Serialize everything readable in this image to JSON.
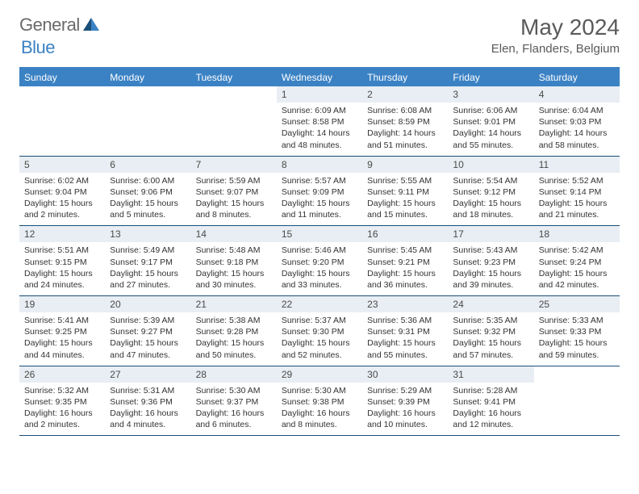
{
  "logo": {
    "general": "General",
    "blue": "Blue"
  },
  "title": "May 2024",
  "location": "Elen, Flanders, Belgium",
  "colors": {
    "header_bg": "#3b82c4",
    "header_text": "#ffffff",
    "daynum_bg": "#e8eef3",
    "border": "#1a4f7a",
    "logo_gray": "#6a6a6a",
    "logo_blue": "#3b82c4"
  },
  "weekdays": [
    "Sunday",
    "Monday",
    "Tuesday",
    "Wednesday",
    "Thursday",
    "Friday",
    "Saturday"
  ],
  "weeks": [
    [
      {
        "num": "",
        "lines": []
      },
      {
        "num": "",
        "lines": []
      },
      {
        "num": "",
        "lines": []
      },
      {
        "num": "1",
        "lines": [
          "Sunrise: 6:09 AM",
          "Sunset: 8:58 PM",
          "Daylight: 14 hours and 48 minutes."
        ]
      },
      {
        "num": "2",
        "lines": [
          "Sunrise: 6:08 AM",
          "Sunset: 8:59 PM",
          "Daylight: 14 hours and 51 minutes."
        ]
      },
      {
        "num": "3",
        "lines": [
          "Sunrise: 6:06 AM",
          "Sunset: 9:01 PM",
          "Daylight: 14 hours and 55 minutes."
        ]
      },
      {
        "num": "4",
        "lines": [
          "Sunrise: 6:04 AM",
          "Sunset: 9:03 PM",
          "Daylight: 14 hours and 58 minutes."
        ]
      }
    ],
    [
      {
        "num": "5",
        "lines": [
          "Sunrise: 6:02 AM",
          "Sunset: 9:04 PM",
          "Daylight: 15 hours and 2 minutes."
        ]
      },
      {
        "num": "6",
        "lines": [
          "Sunrise: 6:00 AM",
          "Sunset: 9:06 PM",
          "Daylight: 15 hours and 5 minutes."
        ]
      },
      {
        "num": "7",
        "lines": [
          "Sunrise: 5:59 AM",
          "Sunset: 9:07 PM",
          "Daylight: 15 hours and 8 minutes."
        ]
      },
      {
        "num": "8",
        "lines": [
          "Sunrise: 5:57 AM",
          "Sunset: 9:09 PM",
          "Daylight: 15 hours and 11 minutes."
        ]
      },
      {
        "num": "9",
        "lines": [
          "Sunrise: 5:55 AM",
          "Sunset: 9:11 PM",
          "Daylight: 15 hours and 15 minutes."
        ]
      },
      {
        "num": "10",
        "lines": [
          "Sunrise: 5:54 AM",
          "Sunset: 9:12 PM",
          "Daylight: 15 hours and 18 minutes."
        ]
      },
      {
        "num": "11",
        "lines": [
          "Sunrise: 5:52 AM",
          "Sunset: 9:14 PM",
          "Daylight: 15 hours and 21 minutes."
        ]
      }
    ],
    [
      {
        "num": "12",
        "lines": [
          "Sunrise: 5:51 AM",
          "Sunset: 9:15 PM",
          "Daylight: 15 hours and 24 minutes."
        ]
      },
      {
        "num": "13",
        "lines": [
          "Sunrise: 5:49 AM",
          "Sunset: 9:17 PM",
          "Daylight: 15 hours and 27 minutes."
        ]
      },
      {
        "num": "14",
        "lines": [
          "Sunrise: 5:48 AM",
          "Sunset: 9:18 PM",
          "Daylight: 15 hours and 30 minutes."
        ]
      },
      {
        "num": "15",
        "lines": [
          "Sunrise: 5:46 AM",
          "Sunset: 9:20 PM",
          "Daylight: 15 hours and 33 minutes."
        ]
      },
      {
        "num": "16",
        "lines": [
          "Sunrise: 5:45 AM",
          "Sunset: 9:21 PM",
          "Daylight: 15 hours and 36 minutes."
        ]
      },
      {
        "num": "17",
        "lines": [
          "Sunrise: 5:43 AM",
          "Sunset: 9:23 PM",
          "Daylight: 15 hours and 39 minutes."
        ]
      },
      {
        "num": "18",
        "lines": [
          "Sunrise: 5:42 AM",
          "Sunset: 9:24 PM",
          "Daylight: 15 hours and 42 minutes."
        ]
      }
    ],
    [
      {
        "num": "19",
        "lines": [
          "Sunrise: 5:41 AM",
          "Sunset: 9:25 PM",
          "Daylight: 15 hours and 44 minutes."
        ]
      },
      {
        "num": "20",
        "lines": [
          "Sunrise: 5:39 AM",
          "Sunset: 9:27 PM",
          "Daylight: 15 hours and 47 minutes."
        ]
      },
      {
        "num": "21",
        "lines": [
          "Sunrise: 5:38 AM",
          "Sunset: 9:28 PM",
          "Daylight: 15 hours and 50 minutes."
        ]
      },
      {
        "num": "22",
        "lines": [
          "Sunrise: 5:37 AM",
          "Sunset: 9:30 PM",
          "Daylight: 15 hours and 52 minutes."
        ]
      },
      {
        "num": "23",
        "lines": [
          "Sunrise: 5:36 AM",
          "Sunset: 9:31 PM",
          "Daylight: 15 hours and 55 minutes."
        ]
      },
      {
        "num": "24",
        "lines": [
          "Sunrise: 5:35 AM",
          "Sunset: 9:32 PM",
          "Daylight: 15 hours and 57 minutes."
        ]
      },
      {
        "num": "25",
        "lines": [
          "Sunrise: 5:33 AM",
          "Sunset: 9:33 PM",
          "Daylight: 15 hours and 59 minutes."
        ]
      }
    ],
    [
      {
        "num": "26",
        "lines": [
          "Sunrise: 5:32 AM",
          "Sunset: 9:35 PM",
          "Daylight: 16 hours and 2 minutes."
        ]
      },
      {
        "num": "27",
        "lines": [
          "Sunrise: 5:31 AM",
          "Sunset: 9:36 PM",
          "Daylight: 16 hours and 4 minutes."
        ]
      },
      {
        "num": "28",
        "lines": [
          "Sunrise: 5:30 AM",
          "Sunset: 9:37 PM",
          "Daylight: 16 hours and 6 minutes."
        ]
      },
      {
        "num": "29",
        "lines": [
          "Sunrise: 5:30 AM",
          "Sunset: 9:38 PM",
          "Daylight: 16 hours and 8 minutes."
        ]
      },
      {
        "num": "30",
        "lines": [
          "Sunrise: 5:29 AM",
          "Sunset: 9:39 PM",
          "Daylight: 16 hours and 10 minutes."
        ]
      },
      {
        "num": "31",
        "lines": [
          "Sunrise: 5:28 AM",
          "Sunset: 9:41 PM",
          "Daylight: 16 hours and 12 minutes."
        ]
      },
      {
        "num": "",
        "lines": []
      }
    ]
  ]
}
